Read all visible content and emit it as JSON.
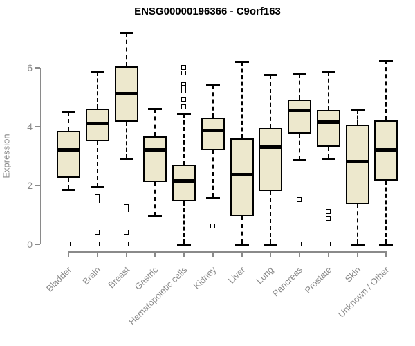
{
  "title": "ENSG00000196366 - C9orf163",
  "chart_data": {
    "type": "boxplot",
    "title": "ENSG00000196366 - C9orf163",
    "xlabel": "",
    "ylabel": "Expression",
    "ylim": [
      0,
      6
    ],
    "yticks": [
      0,
      2,
      4,
      6
    ],
    "grid": false,
    "legend": "none",
    "categories": [
      "Bladder",
      "Brain",
      "Breast",
      "Gastric",
      "Hematopoietic cells",
      "Kidney",
      "Liver",
      "Lung",
      "Pancreas",
      "Prostate",
      "Skin",
      "Unknown / Other"
    ],
    "series": [
      {
        "category": "Bladder",
        "whisker_low": 1.85,
        "q1": 2.25,
        "median": 3.2,
        "q3": 3.85,
        "whisker_high": 4.5,
        "outliers": [
          0
        ]
      },
      {
        "category": "Brain",
        "whisker_low": 1.95,
        "q1": 3.5,
        "median": 4.1,
        "q3": 4.6,
        "whisker_high": 5.85,
        "outliers": [
          1.6,
          1.45,
          0.4,
          0
        ]
      },
      {
        "category": "Breast",
        "whisker_low": 2.9,
        "q1": 4.15,
        "median": 5.1,
        "q3": 6.05,
        "whisker_high": 7.2,
        "outliers": [
          1.25,
          1.15,
          0.4,
          0
        ]
      },
      {
        "category": "Gastric",
        "whisker_low": 0.95,
        "q1": 2.1,
        "median": 3.2,
        "q3": 3.65,
        "whisker_high": 4.6,
        "outliers": []
      },
      {
        "category": "Hematopoietic cells",
        "whisker_low": 0,
        "q1": 1.45,
        "median": 2.15,
        "q3": 2.7,
        "whisker_high": 4.45,
        "outliers": [
          6.0,
          5.8,
          5.4,
          5.3,
          5.2,
          4.9,
          4.65
        ]
      },
      {
        "category": "Kidney",
        "whisker_low": 1.6,
        "q1": 3.2,
        "median": 3.85,
        "q3": 4.3,
        "whisker_high": 5.4,
        "outliers": [
          0.6
        ]
      },
      {
        "category": "Liver",
        "whisker_low": 0,
        "q1": 0.95,
        "median": 2.35,
        "q3": 3.6,
        "whisker_high": 6.2,
        "outliers": []
      },
      {
        "category": "Lung",
        "whisker_low": 0,
        "q1": 1.8,
        "median": 3.3,
        "q3": 3.95,
        "whisker_high": 5.75,
        "outliers": []
      },
      {
        "category": "Pancreas",
        "whisker_low": 2.85,
        "q1": 3.75,
        "median": 4.55,
        "q3": 4.9,
        "whisker_high": 5.8,
        "outliers": [
          1.5,
          0
        ]
      },
      {
        "category": "Prostate",
        "whisker_low": 2.9,
        "q1": 3.3,
        "median": 4.15,
        "q3": 4.55,
        "whisker_high": 5.85,
        "outliers": [
          1.1,
          0.85,
          0
        ]
      },
      {
        "category": "Skin",
        "whisker_low": 0,
        "q1": 1.35,
        "median": 2.8,
        "q3": 4.05,
        "whisker_high": 4.55,
        "outliers": []
      },
      {
        "category": "Unknown / Other",
        "whisker_low": 0,
        "q1": 2.15,
        "median": 3.2,
        "q3": 4.2,
        "whisker_high": 6.25,
        "outliers": []
      }
    ],
    "colors": {
      "box_fill": "#EDE8CD",
      "box_border": "#000000",
      "median": "#000000",
      "axis": "#8a8a8a",
      "tick_label": "#8a8a8a",
      "title": "#000000"
    }
  }
}
